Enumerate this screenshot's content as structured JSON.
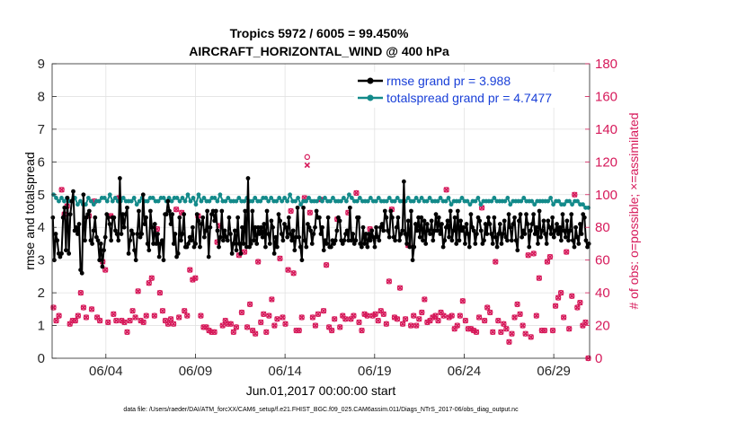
{
  "chart_data": {
    "type": "line",
    "title_line1": "Tropics 5972 / 6005 = 99.450%",
    "title_line2": "AIRCRAFT_HORIZONTAL_WIND @ 400 hPa",
    "ylabel_left": "rmse and totalspread",
    "ylabel_right": "# of obs: o=possible; ×=assimilated",
    "xlabel": "Jun.01,2017 00:00:00 start",
    "footer": "data file: /Users/raeder/DAI/ATM_forcXX/CAM6_setup/f.e21.FHIST_BGC.f09_025.CAM6assim.011/Diags_NTrS_2017-06/obs_diag_output.nc",
    "xlim": [
      0,
      30
    ],
    "ylim_left": [
      0,
      9
    ],
    "ylim_right": [
      0,
      180
    ],
    "x_ticks": [
      3,
      8,
      13,
      18,
      23,
      28
    ],
    "x_tick_labels": [
      "06/04",
      "06/09",
      "06/14",
      "06/19",
      "06/24",
      "06/29"
    ],
    "y_ticks_left": [
      "0",
      "1",
      "2",
      "3",
      "4",
      "5",
      "6",
      "7",
      "8",
      "9"
    ],
    "y_ticks_right": [
      "0",
      "20",
      "40",
      "60",
      "80",
      "100",
      "120",
      "140",
      "160",
      "180"
    ],
    "colors": {
      "rmse": "#000000",
      "spread": "#138a8a",
      "obs": "#d6195a",
      "legend_text": "#1a40d8"
    },
    "series": [
      {
        "name": "rmse grand pr = 3.988",
        "axis": "left",
        "values": [
          4.3,
          3.0,
          3.8,
          3.6,
          3.2,
          3.1,
          3.2,
          4.3,
          4.6,
          3.3,
          4.9,
          3.2,
          4.4,
          4.8,
          5.1,
          3.9,
          4.0,
          3.8,
          4.1,
          2.7,
          2.6,
          5.0,
          3.6,
          4.3,
          4.4,
          4.5,
          3.6,
          3.5,
          3.9,
          4.3,
          3.7,
          3.6,
          3.0,
          3.5,
          2.8,
          3.3,
          3.7,
          4.4,
          4.3,
          4.1,
          3.6,
          4.3,
          4.3,
          3.9,
          3.8,
          3.6,
          5.5,
          3.8,
          4.4,
          4.0,
          4.4,
          4.6,
          3.2,
          3.6,
          3.9,
          3.8,
          3.3,
          3.0,
          3.8,
          4.5,
          3.7,
          3.8,
          5.0,
          4.1,
          4.3,
          3.5,
          3.3,
          4.5,
          4.0,
          3.5,
          4.1,
          3.5,
          3.8,
          3.1,
          3.5,
          3.6,
          3.0,
          4.4,
          4.4,
          4.8,
          4.5,
          4.1,
          4.4,
          3.5,
          3.8,
          3.1,
          3.2,
          4.3,
          3.6,
          3.8,
          4.4,
          3.4,
          3.4,
          3.5,
          3.7,
          3.6,
          4.0,
          3.4,
          3.5,
          4.4,
          4.2,
          3.4,
          4.1,
          4.3,
          3.7,
          3.9,
          4.5,
          3.1,
          4.0,
          4.4,
          4.5,
          4.2,
          4.5,
          3.9,
          3.4,
          3.7,
          4.5,
          3.6,
          3.9,
          3.7,
          3.6,
          4.3,
          3.8,
          3.2,
          3.5,
          3.9,
          3.3,
          4.3,
          3.5,
          3.2,
          4.0,
          3.5,
          4.5,
          3.4,
          5.5,
          3.4,
          3.5,
          4.5,
          3.6,
          4.0,
          3.5,
          4.0,
          3.8,
          4.0,
          3.7,
          4.1,
          3.4,
          4.5,
          3.8,
          3.5,
          4.2,
          4.0,
          3.2,
          3.7,
          3.4,
          4.4,
          4.2,
          3.8,
          3.6,
          4.1,
          4.0,
          3.7,
          4.3,
          3.8,
          3.6,
          3.9,
          3.3,
          3.7,
          4.6,
          3.7,
          3.4,
          3.0,
          4.6,
          3.6,
          3.4,
          4.1,
          4.0,
          3.9,
          3.5,
          3.8,
          4.0,
          4.5,
          4.3,
          4.3,
          3.8,
          4.0,
          3.3,
          3.6,
          3.5,
          4.3,
          3.4,
          3.4,
          3.6,
          3.5,
          3.6,
          3.9,
          4.3,
          4.2,
          3.6,
          3.5,
          3.6,
          3.8,
          3.9,
          3.6,
          4.6,
          3.6,
          3.8,
          3.5,
          3.6,
          4.3,
          4.3,
          3.5,
          3.4,
          4.0,
          3.5,
          3.8,
          3.4,
          3.8,
          3.6,
          3.9,
          3.7,
          3.4,
          4.0,
          3.7,
          3.6,
          4.0,
          4.1,
          3.9,
          4.5,
          4.3,
          3.9,
          3.7,
          4.5,
          4.3,
          3.7,
          3.6,
          4.0,
          4.3,
          3.6,
          3.8,
          3.9,
          5.4,
          3.8,
          3.5,
          4.2,
          3.4,
          4.5,
          3.0,
          3.4,
          4.1,
          3.9,
          4.3,
          3.7,
          4.3,
          3.6,
          4.2,
          3.5,
          4.1,
          3.9,
          3.8,
          4.2,
          3.6,
          3.9,
          4.4,
          3.9,
          4.3,
          3.8,
          4.1,
          3.4,
          3.6,
          4.0,
          4.2,
          3.7,
          4.5,
          3.6,
          3.9,
          4.3,
          3.5,
          4.5,
          3.6,
          4.2,
          3.9,
          4.0,
          3.5,
          4.1,
          3.8,
          3.4,
          4.4,
          4.0,
          3.9,
          3.5,
          3.8,
          4.3,
          4.2,
          3.9,
          3.5,
          3.6,
          4.1,
          3.8,
          4.3,
          4.1,
          3.8,
          3.5,
          4.3,
          3.7,
          3.4,
          3.8,
          4.1,
          3.5,
          3.8,
          4.2,
          3.7,
          3.6,
          4.4,
          4.0,
          3.6,
          4.1,
          4.3,
          3.6,
          3.3,
          4.2,
          4.4,
          3.7,
          3.9,
          3.8,
          4.4,
          4.1,
          3.4,
          3.9,
          4.1,
          4.4,
          3.8,
          4.0,
          3.5,
          4.5,
          3.7,
          3.9,
          4.2,
          3.8,
          3.5,
          4.2,
          4.0,
          3.8,
          4.3,
          3.7,
          3.9,
          4.1,
          3.8,
          4.0,
          3.6,
          4.4,
          3.9,
          3.7,
          4.2,
          3.6,
          3.9,
          4.4,
          3.6,
          3.4,
          4.0,
          3.7,
          3.5,
          4.1,
          3.8,
          4.4,
          4.3,
          3.6,
          3.4,
          3.5
        ]
      },
      {
        "name": "totalspread grand pr = 4.7477",
        "axis": "left",
        "values": [
          5.0,
          4.9,
          4.8,
          4.9,
          4.8,
          4.9,
          4.8,
          4.8,
          4.9,
          4.7,
          4.8,
          4.7,
          4.7,
          4.9,
          4.8,
          4.7,
          4.8,
          4.8,
          4.9,
          4.9,
          4.8,
          5.0,
          4.8,
          4.9,
          4.8,
          4.8,
          4.9,
          4.8,
          4.8,
          4.8,
          4.9,
          4.7,
          4.8,
          4.9,
          4.8,
          4.8,
          4.9,
          4.9,
          4.8,
          4.8,
          4.9,
          4.9,
          4.8,
          4.9,
          4.8,
          4.9,
          4.9,
          4.8,
          4.9,
          4.8,
          5.0,
          4.8,
          4.9,
          4.7,
          5.0,
          4.8,
          4.9,
          4.8,
          4.8,
          4.9,
          4.9,
          4.8,
          5.0,
          4.8,
          4.8,
          4.9,
          4.8,
          4.8,
          4.8,
          4.9,
          4.8,
          4.8,
          4.9,
          4.8,
          4.8,
          4.9,
          4.8,
          4.8,
          4.9,
          4.9,
          4.8,
          4.9,
          4.8,
          4.8,
          4.9,
          4.8,
          4.9,
          4.8,
          5.0,
          4.8,
          4.8,
          4.9,
          4.7,
          4.8,
          4.8,
          4.9,
          4.8,
          4.8,
          4.8,
          4.9,
          4.8,
          4.9,
          4.8,
          4.8,
          4.9,
          4.8,
          4.8,
          4.8,
          4.9,
          4.8,
          5.0,
          4.9,
          4.8,
          4.8,
          4.9,
          4.8,
          4.8,
          4.8,
          4.9,
          4.8,
          4.8,
          4.9,
          4.8,
          4.8,
          4.8,
          4.9,
          4.8,
          4.8,
          4.9,
          4.8,
          4.8,
          4.8,
          4.9,
          4.8,
          4.8,
          4.9,
          4.8,
          4.9,
          4.8,
          4.8,
          4.9,
          4.8,
          4.8,
          4.8,
          4.9,
          4.8,
          4.8,
          4.9,
          4.7,
          4.8,
          4.8,
          4.8,
          4.9,
          4.8,
          4.8,
          4.7,
          4.8,
          4.8,
          4.9,
          4.7,
          4.8,
          4.8,
          4.8,
          4.8,
          4.9,
          4.8,
          4.8,
          4.8,
          4.8,
          4.9,
          4.7,
          4.8,
          4.8,
          4.8,
          4.8,
          4.9,
          4.8,
          4.8,
          4.8,
          4.7,
          4.8,
          4.8,
          4.8,
          4.8,
          4.8,
          4.9,
          4.7,
          4.8,
          4.8,
          4.7,
          4.7,
          4.8,
          4.8,
          4.7,
          4.8,
          4.8,
          4.7,
          4.7,
          4.6,
          4.6
        ]
      }
    ],
    "obs_possible": {
      "axis": "right",
      "values": [
        31,
        23,
        26,
        103,
        88,
        93,
        21,
        23,
        23,
        26,
        40,
        31,
        25,
        87,
        30,
        96,
        25,
        23,
        59,
        54,
        22,
        87,
        27,
        23,
        98,
        23,
        22,
        16,
        23,
        29,
        25,
        41,
        23,
        22,
        26,
        46,
        49,
        26,
        79,
        40,
        29,
        23,
        21,
        24,
        21,
        91,
        25,
        89,
        29,
        26,
        54,
        48,
        49,
        87,
        26,
        19,
        19,
        17,
        16,
        16,
        71,
        81,
        20,
        23,
        21,
        21,
        16,
        19,
        63,
        28,
        65,
        19,
        33,
        17,
        15,
        59,
        22,
        27,
        16,
        26,
        36,
        20,
        24,
        61,
        25,
        21,
        54,
        90,
        52,
        17,
        17,
        25,
        98,
        123,
        89,
        25,
        20,
        27,
        97,
        29,
        57,
        19,
        17,
        24,
        85,
        19,
        26,
        24,
        89,
        24,
        26,
        101,
        22,
        17,
        27,
        26,
        79,
        26,
        27,
        23,
        29,
        27,
        21,
        47,
        91,
        25,
        24,
        43,
        21,
        24,
        69,
        20,
        26,
        20,
        24,
        28,
        36,
        22,
        23,
        25,
        26,
        23,
        28,
        26,
        103,
        25,
        26,
        18,
        20,
        26,
        35,
        23,
        18,
        18,
        17,
        16,
        25,
        92,
        23,
        31,
        28,
        16,
        59,
        23,
        16,
        21,
        18,
        10,
        15,
        25,
        33,
        27,
        20,
        15,
        63,
        13,
        64,
        26,
        49,
        17,
        17,
        59,
        62,
        17,
        32,
        37,
        40,
        25,
        65,
        18,
        38,
        100,
        31,
        34,
        20,
        22,
        0
      ]
    },
    "obs_assimilated": {
      "axis": "right",
      "values": [
        31,
        23,
        26,
        103,
        88,
        93,
        21,
        23,
        23,
        26,
        40,
        31,
        25,
        87,
        30,
        96,
        25,
        23,
        59,
        54,
        22,
        87,
        27,
        23,
        98,
        23,
        22,
        16,
        23,
        29,
        25,
        41,
        23,
        22,
        26,
        46,
        49,
        26,
        79,
        40,
        29,
        23,
        21,
        24,
        21,
        91,
        25,
        89,
        29,
        26,
        54,
        48,
        49,
        87,
        26,
        19,
        19,
        17,
        16,
        16,
        71,
        81,
        20,
        23,
        21,
        21,
        16,
        19,
        63,
        28,
        65,
        19,
        33,
        17,
        15,
        59,
        22,
        27,
        16,
        26,
        36,
        20,
        24,
        61,
        25,
        21,
        54,
        90,
        52,
        17,
        17,
        25,
        98,
        118,
        89,
        25,
        20,
        27,
        97,
        29,
        57,
        19,
        17,
        24,
        85,
        19,
        26,
        24,
        89,
        24,
        26,
        101,
        22,
        17,
        27,
        26,
        79,
        26,
        27,
        23,
        29,
        27,
        21,
        47,
        91,
        25,
        24,
        43,
        21,
        24,
        69,
        20,
        26,
        20,
        24,
        28,
        36,
        22,
        23,
        25,
        26,
        23,
        28,
        26,
        103,
        25,
        26,
        18,
        20,
        26,
        35,
        23,
        18,
        18,
        17,
        16,
        25,
        92,
        23,
        31,
        28,
        16,
        59,
        23,
        16,
        21,
        18,
        10,
        15,
        25,
        33,
        27,
        20,
        15,
        63,
        13,
        64,
        26,
        49,
        17,
        17,
        59,
        62,
        17,
        32,
        37,
        40,
        25,
        65,
        18,
        38,
        100,
        31,
        34,
        20,
        22,
        0
      ]
    }
  }
}
